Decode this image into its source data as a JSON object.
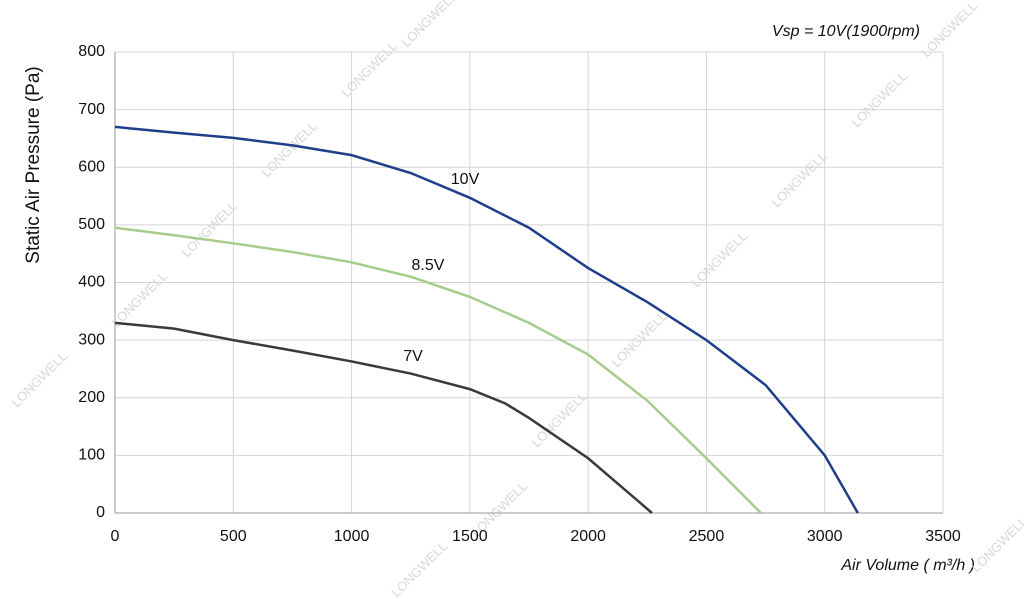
{
  "chart_data": {
    "type": "line",
    "annotation": "Vsp = 10V(1900rpm)",
    "watermark": "LONGWELL",
    "x_label": "Air Volume ( m³/h )",
    "y_label": "Static Air Pressure  (Pa)",
    "xlim": [
      0,
      3500
    ],
    "xticks": [
      0,
      500,
      1000,
      1500,
      2000,
      2500,
      3000,
      3500
    ],
    "ylim": [
      0,
      800
    ],
    "yticks": [
      0,
      100,
      200,
      300,
      400,
      500,
      600,
      700,
      800
    ],
    "grid": true,
    "series": [
      {
        "name": "10V",
        "color": "#1f3f8a",
        "x": [
          0,
          250,
          500,
          750,
          1000,
          1250,
          1500,
          1750,
          2000,
          2250,
          2500,
          2750,
          3000,
          3140
        ],
        "values": [
          670,
          660,
          651,
          638,
          621,
          590,
          547,
          495,
          425,
          366,
          300,
          222,
          100,
          0
        ]
      },
      {
        "name": "8.5V",
        "color": "#a5cc8a",
        "x": [
          0,
          250,
          500,
          750,
          1000,
          1250,
          1500,
          1750,
          2000,
          2250,
          2500,
          2730
        ],
        "values": [
          495,
          482,
          468,
          453,
          435,
          410,
          375,
          330,
          275,
          195,
          95,
          0
        ]
      },
      {
        "name": "7V",
        "color": "#3a3a3a",
        "x": [
          0,
          250,
          500,
          750,
          1000,
          1250,
          1500,
          1650,
          1750,
          2000,
          2270
        ],
        "values": [
          330,
          320,
          300,
          282,
          263,
          242,
          215,
          190,
          165,
          95,
          0
        ]
      }
    ]
  }
}
